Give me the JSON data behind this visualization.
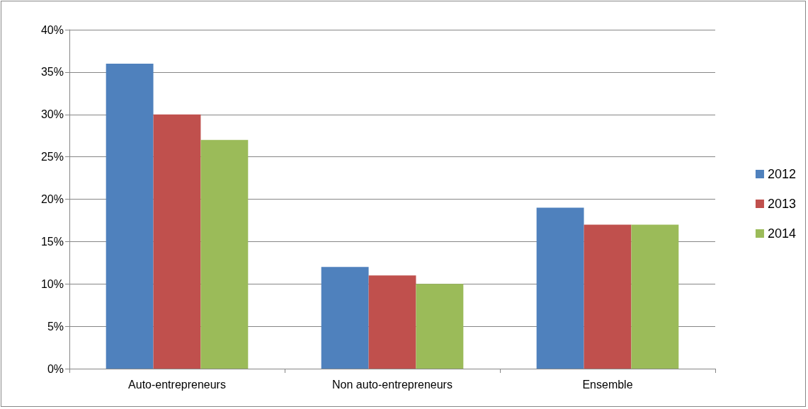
{
  "chart_data": {
    "type": "bar",
    "categories": [
      "Auto-entrepreneurs",
      "Non auto-entrepreneurs",
      "Ensemble"
    ],
    "series": [
      {
        "name": "2012",
        "color": "#4f81bd",
        "values": [
          36,
          12,
          19
        ]
      },
      {
        "name": "2013",
        "color": "#c0504d",
        "values": [
          30,
          11,
          17
        ]
      },
      {
        "name": "2014",
        "color": "#9bbb59",
        "values": [
          27,
          10,
          17
        ]
      }
    ],
    "ylim": [
      0,
      40
    ],
    "yticks": [
      {
        "value": 0,
        "label": "0%"
      },
      {
        "value": 5,
        "label": "5%"
      },
      {
        "value": 10,
        "label": "10%"
      },
      {
        "value": 15,
        "label": "15%"
      },
      {
        "value": 20,
        "label": "20%"
      },
      {
        "value": 25,
        "label": "25%"
      },
      {
        "value": 30,
        "label": "30%"
      },
      {
        "value": 35,
        "label": "35%"
      },
      {
        "value": 40,
        "label": "40%"
      }
    ],
    "grid": "y",
    "legend": "right"
  }
}
